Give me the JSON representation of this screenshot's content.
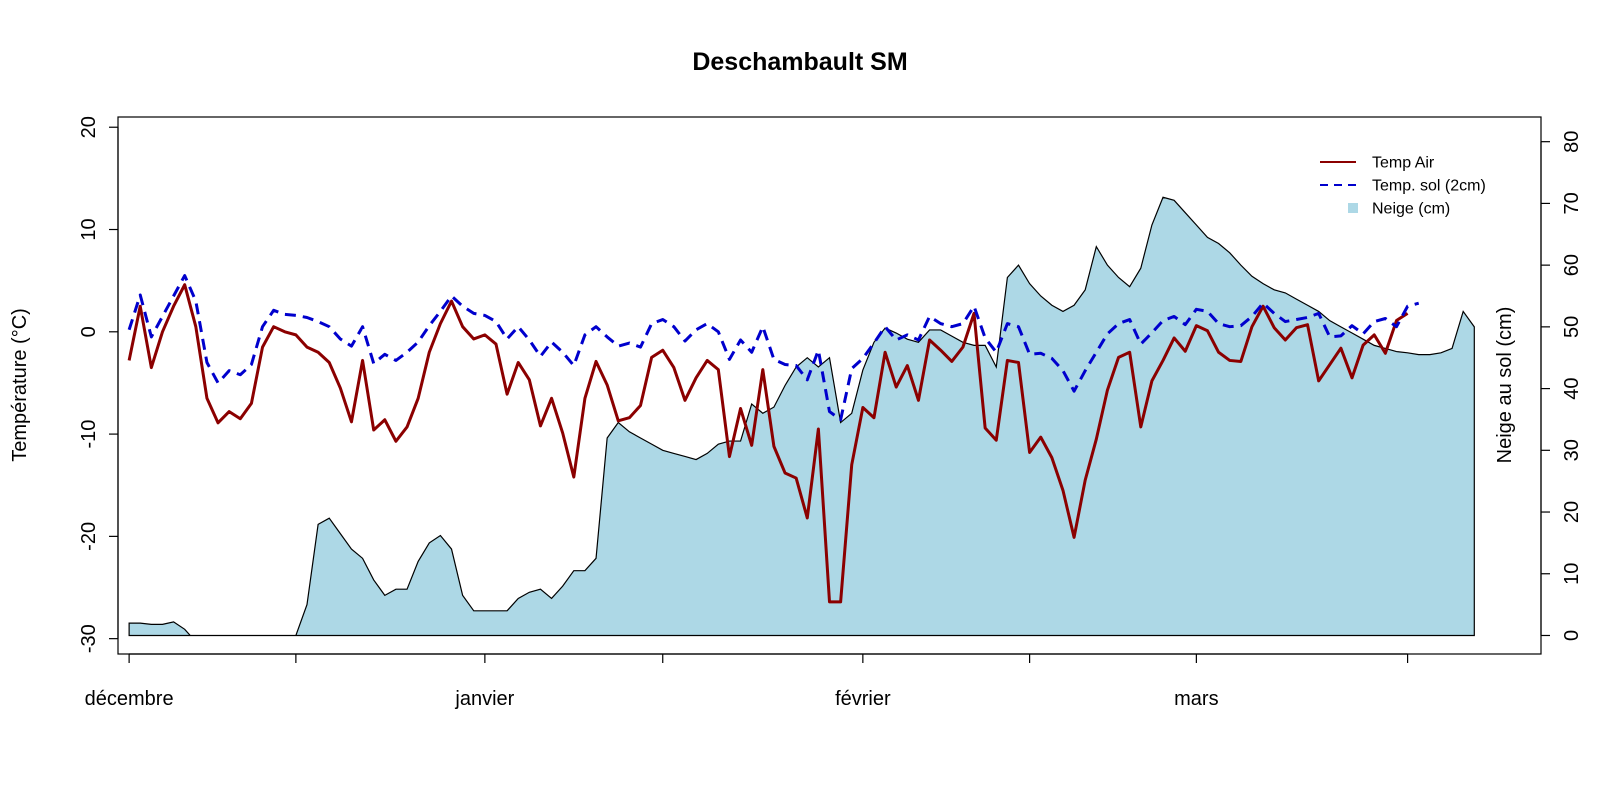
{
  "chart_data": {
    "type": "line",
    "title": "Deschambault SM",
    "ylabel_left": "Température (°C)",
    "ylabel_right": "Neige au sol (cm)",
    "xlim_days": [
      -1,
      127
    ],
    "ylim_left": [
      -31.5,
      21
    ],
    "yticks_left": [
      -30,
      -20,
      -10,
      0,
      10,
      20
    ],
    "ylim_right": [
      -3,
      84
    ],
    "yticks_right": [
      0,
      10,
      20,
      30,
      40,
      50,
      60,
      70,
      80
    ],
    "x_tick_days": [
      0,
      15,
      32,
      48,
      66,
      81,
      96,
      115
    ],
    "x_label_days": [
      0,
      32,
      66,
      96
    ],
    "x_labels": [
      "décembre",
      "janvier",
      "février",
      "mars"
    ],
    "legend": {
      "position": "top-right",
      "items": [
        {
          "label": "Temp Air",
          "style": "solid",
          "color": "#8B0000"
        },
        {
          "label": "Temp. sol (2cm)",
          "style": "dashed",
          "color": "#0000CD"
        },
        {
          "label": "Neige (cm)",
          "style": "fill",
          "color": "#ADD8E6"
        }
      ]
    },
    "series": [
      {
        "name": "Temp Air",
        "color": "#8B0000",
        "values": [
          -2.8,
          2.5,
          -3.5,
          0,
          2.5,
          4.6,
          0.5,
          -6.5,
          -8.9,
          -7.8,
          -8.5,
          -7,
          -1.5,
          0.5,
          0,
          -0.3,
          -1.5,
          -2,
          -3,
          -5.5,
          -8.8,
          -2.8,
          -9.6,
          -8.6,
          -10.7,
          -9.3,
          -6.5,
          -2,
          0.8,
          3,
          0.5,
          -0.7,
          -0.3,
          -1.2,
          -6.1,
          -3,
          -4.7,
          -9.2,
          -6.5,
          -9.9,
          -14.2,
          -6.5,
          -2.9,
          -5.2,
          -8.7,
          -8.4,
          -7.2,
          -2.5,
          -1.8,
          -3.5,
          -6.7,
          -4.5,
          -2.8,
          -3.7,
          -12.2,
          -7.5,
          -11.1,
          -3.7,
          -11.2,
          -13.8,
          -14.3,
          -18.2,
          -9.5,
          -26.4,
          -26.4,
          -13,
          -7.4,
          -8.4,
          -2,
          -5.4,
          -3.3,
          -6.7,
          -0.8,
          -1.8,
          -2.9,
          -1.5,
          1.8,
          -9.4,
          -10.6,
          -2.8,
          -3,
          -11.8,
          -10.3,
          -12.3,
          -15.5,
          -20.1,
          -14.5,
          -10.5,
          -5.7,
          -2.5,
          -2,
          -9.3,
          -4.8,
          -2.8,
          -0.6,
          -1.9,
          0.6,
          0.1,
          -2,
          -2.8,
          -2.9,
          0.5,
          2.5,
          0.4,
          -0.8,
          0.4,
          0.7,
          -4.8,
          -3.2,
          -1.6,
          -4.5,
          -1.3,
          -0.3,
          -2.1,
          1.1,
          1.8
        ],
        "style": "solid"
      },
      {
        "name": "Temp. sol (2cm)",
        "color": "#0000CD",
        "values": [
          0.2,
          3.6,
          -0.5,
          1.5,
          3.5,
          5.5,
          3,
          -3,
          -5,
          -3.8,
          -4.2,
          -3.2,
          0.5,
          2.1,
          1.7,
          1.6,
          1.4,
          1,
          0.5,
          -0.7,
          -1.4,
          0.5,
          -3.1,
          -2.2,
          -2.8,
          -2,
          -1,
          0.6,
          2,
          3.5,
          2.5,
          1.8,
          1.6,
          1,
          -0.7,
          0.5,
          -0.8,
          -2.4,
          -1,
          -2,
          -3.3,
          -0.3,
          0.5,
          -0.5,
          -1.4,
          -1.1,
          -1.5,
          0.8,
          1.2,
          0.5,
          -0.9,
          0.2,
          0.8,
          0,
          -2.7,
          -0.8,
          -2,
          0.5,
          -2.7,
          -3.2,
          -3.3,
          -4.7,
          -1.8,
          -7.8,
          -8.6,
          -3.6,
          -2.6,
          -1.1,
          0.5,
          -0.8,
          -0.3,
          -0.8,
          1.5,
          0.8,
          0.5,
          0.8,
          2.5,
          -0.6,
          -2,
          0.8,
          0.5,
          -2.2,
          -2.1,
          -2.6,
          -3.8,
          -5.8,
          -3.8,
          -2,
          -0.2,
          0.8,
          1.2,
          -1.2,
          -0.1,
          1.1,
          1.5,
          0.7,
          2.2,
          2,
          0.8,
          0.5,
          0.6,
          1.5,
          2.8,
          1.8,
          1,
          1.2,
          1.4,
          1.8,
          -0.5,
          -0.4,
          0.6,
          -0.2,
          1,
          1.3,
          0.5,
          2.5,
          2.8
        ],
        "style": "dashed"
      },
      {
        "name": "Neige (cm)",
        "color": "#ADD8E6",
        "axis": "right",
        "points": [
          [
            0,
            2
          ],
          [
            1,
            2
          ],
          [
            2,
            1.8
          ],
          [
            3,
            1.8
          ],
          [
            4,
            2.2
          ],
          [
            5,
            1
          ],
          [
            5.5,
            0
          ],
          [
            15,
            0
          ],
          [
            16,
            5
          ],
          [
            17,
            18
          ],
          [
            18,
            19
          ],
          [
            19,
            16.5
          ],
          [
            20,
            14
          ],
          [
            21,
            12.5
          ],
          [
            22,
            9
          ],
          [
            23,
            6.5
          ],
          [
            24,
            7.5
          ],
          [
            25,
            7.5
          ],
          [
            26,
            12
          ],
          [
            27,
            15
          ],
          [
            28,
            16.2
          ],
          [
            29,
            14
          ],
          [
            30,
            6.5
          ],
          [
            31,
            4
          ],
          [
            32,
            4
          ],
          [
            33,
            4
          ],
          [
            34,
            4
          ],
          [
            35,
            6
          ],
          [
            36,
            7
          ],
          [
            37,
            7.5
          ],
          [
            38,
            6
          ],
          [
            39,
            8
          ],
          [
            40,
            10.5
          ],
          [
            41,
            10.5
          ],
          [
            42,
            12.5
          ],
          [
            43,
            32
          ],
          [
            44,
            34.5
          ],
          [
            45,
            33
          ],
          [
            46,
            32
          ],
          [
            47,
            31
          ],
          [
            48,
            30
          ],
          [
            49,
            29.5
          ],
          [
            50,
            29
          ],
          [
            51,
            28.5
          ],
          [
            52,
            29.5
          ],
          [
            53,
            31
          ],
          [
            54,
            31.5
          ],
          [
            55,
            31.5
          ],
          [
            56,
            37.5
          ],
          [
            57,
            36
          ],
          [
            58,
            37
          ],
          [
            59,
            40.5
          ],
          [
            60,
            43.5
          ],
          [
            61,
            45
          ],
          [
            62,
            43.5
          ],
          [
            63,
            45
          ],
          [
            64,
            34.5
          ],
          [
            65,
            36
          ],
          [
            66,
            43
          ],
          [
            67,
            47.5
          ],
          [
            68,
            49.8
          ],
          [
            69,
            49
          ],
          [
            70,
            48
          ],
          [
            71,
            47.5
          ],
          [
            72,
            49.5
          ],
          [
            73,
            49.5
          ],
          [
            74,
            48.5
          ],
          [
            75,
            47.5
          ],
          [
            76,
            47
          ],
          [
            77,
            47
          ],
          [
            78,
            43.5
          ],
          [
            79,
            58
          ],
          [
            80,
            60
          ],
          [
            81,
            57
          ],
          [
            82,
            55
          ],
          [
            83,
            53.5
          ],
          [
            84,
            52.5
          ],
          [
            85,
            53.5
          ],
          [
            86,
            56
          ],
          [
            87,
            63
          ],
          [
            88,
            60
          ],
          [
            89,
            58
          ],
          [
            90,
            56.5
          ],
          [
            91,
            59.5
          ],
          [
            92,
            66.5
          ],
          [
            93,
            71
          ],
          [
            94,
            70.5
          ],
          [
            95,
            68.5
          ],
          [
            96,
            66.5
          ],
          [
            97,
            64.5
          ],
          [
            98,
            63.5
          ],
          [
            99,
            62
          ],
          [
            100,
            60
          ],
          [
            101,
            58.2
          ],
          [
            102,
            57
          ],
          [
            103,
            56
          ],
          [
            104,
            55.5
          ],
          [
            105,
            54.5
          ],
          [
            106,
            53.5
          ],
          [
            107,
            52.5
          ],
          [
            108,
            51
          ],
          [
            109,
            50
          ],
          [
            110,
            49
          ],
          [
            111,
            48
          ],
          [
            112,
            47
          ],
          [
            113,
            46.5
          ],
          [
            114,
            46
          ],
          [
            115,
            45.8
          ],
          [
            116,
            45.5
          ],
          [
            117,
            45.5
          ],
          [
            118,
            45.8
          ],
          [
            119,
            46.5
          ],
          [
            120,
            52.5
          ],
          [
            121,
            50
          ]
        ],
        "style": "fill"
      }
    ]
  }
}
